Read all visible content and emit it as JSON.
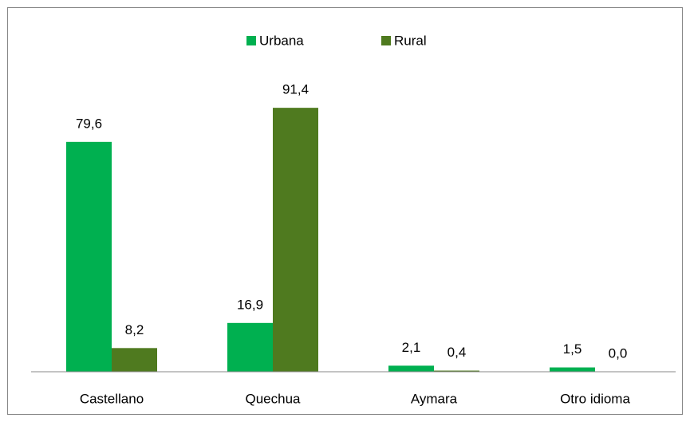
{
  "chart_data": {
    "type": "bar",
    "categories": [
      "Castellano",
      "Quechua",
      "Aymara",
      "Otro idioma"
    ],
    "series": [
      {
        "name": "Urbana",
        "color": "#00b050",
        "values": [
          79.6,
          16.9,
          2.1,
          1.5
        ],
        "value_labels": [
          "79,6",
          "16,9",
          "2,1",
          "1,5"
        ]
      },
      {
        "name": "Rural",
        "color": "#4f7a1f",
        "values": [
          8.2,
          91.4,
          0.4,
          0.0
        ],
        "value_labels": [
          "8,2",
          "91,4",
          "0,4",
          "0,0"
        ]
      }
    ],
    "ylim": [
      0,
      100
    ],
    "legend": "top"
  }
}
